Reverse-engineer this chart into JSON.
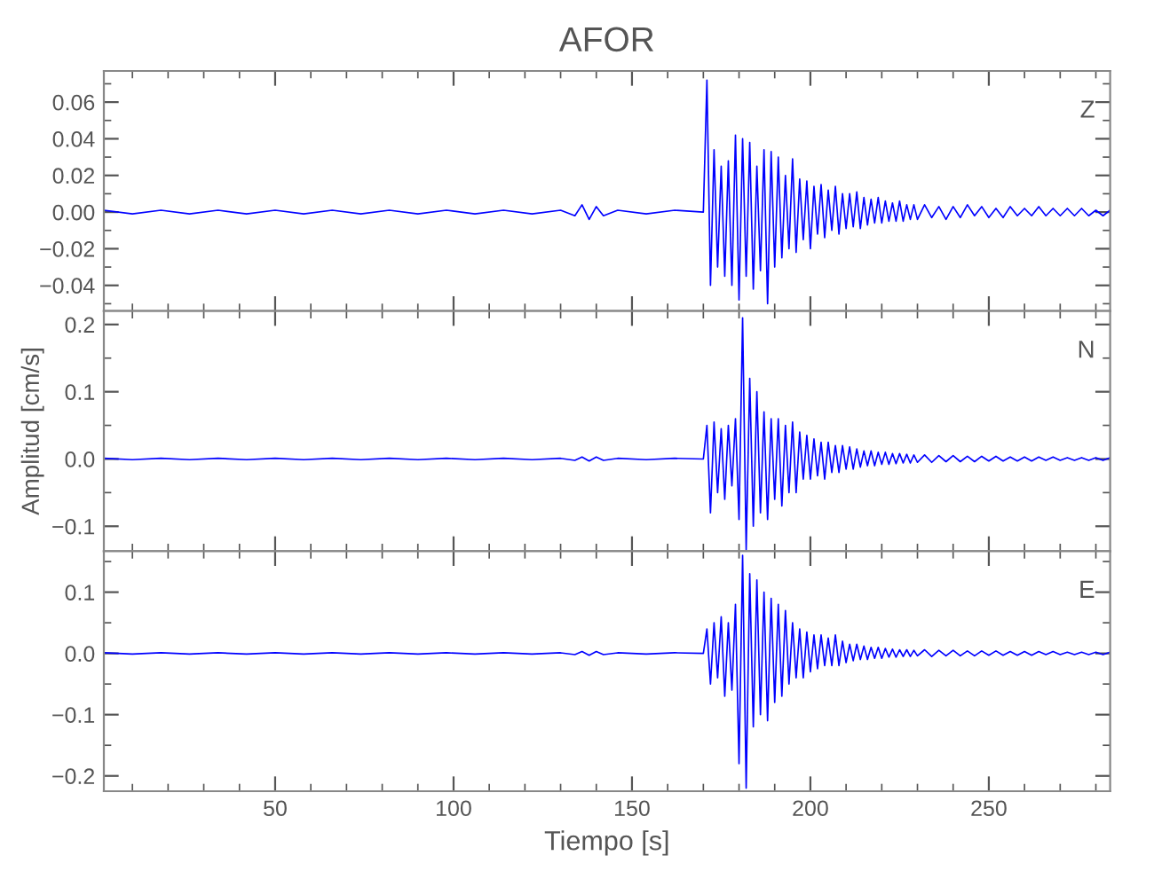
{
  "chart_data": [
    {
      "type": "line",
      "title": "AFOR",
      "annotations": [
        "Z"
      ],
      "tick_labels": "y",
      "marker": "none",
      "line_style": "solid",
      "grid": false,
      "legend": false,
      "xlim": [
        2,
        284
      ],
      "xticks": [
        50,
        100,
        150,
        200,
        250
      ],
      "ylim": [
        -0.054,
        0.077
      ],
      "yticks": [
        {
          "value": -0.04,
          "label": "−0.04"
        },
        {
          "value": -0.02,
          "label": "−0.02"
        },
        {
          "value": 0,
          "label": "0.00"
        },
        {
          "value": 0.02,
          "label": "0.02"
        },
        {
          "value": 0.04,
          "label": "0.04"
        },
        {
          "value": 0.06,
          "label": "0.06"
        }
      ],
      "x": [
        2,
        10,
        18,
        26,
        34,
        42,
        50,
        58,
        66,
        74,
        82,
        90,
        98,
        106,
        114,
        122,
        130,
        134,
        136,
        138,
        140,
        142,
        146,
        154,
        162,
        170,
        171,
        172,
        173,
        174,
        175,
        176,
        177,
        178,
        179,
        180,
        181,
        182,
        183,
        184,
        185,
        186,
        187,
        188,
        189,
        190,
        191,
        192,
        193,
        194,
        195,
        196,
        197,
        198,
        199,
        200,
        201,
        202,
        203,
        204,
        205,
        206,
        207,
        208,
        209,
        210,
        211,
        212,
        213,
        214,
        215,
        216,
        217,
        218,
        219,
        220,
        221,
        222,
        223,
        224,
        225,
        226,
        227,
        228,
        229,
        230,
        232,
        234,
        236,
        238,
        240,
        242,
        244,
        246,
        248,
        250,
        252,
        254,
        256,
        258,
        260,
        262,
        264,
        266,
        268,
        270,
        272,
        274,
        276,
        278,
        280,
        282,
        284
      ],
      "series": [
        {
          "color": "#0000ff",
          "values": [
            0.001,
            -0.001,
            0.001,
            -0.001,
            0.001,
            -0.001,
            0.001,
            -0.001,
            0.001,
            -0.001,
            0.001,
            -0.001,
            0.001,
            -0.001,
            0.001,
            -0.001,
            0.001,
            -0.002,
            0.004,
            -0.004,
            0.003,
            -0.002,
            0.001,
            -0.001,
            0.001,
            0.0,
            0.072,
            -0.04,
            0.034,
            -0.03,
            0.025,
            -0.035,
            0.028,
            -0.04,
            0.042,
            -0.048,
            0.04,
            -0.035,
            0.038,
            -0.042,
            0.025,
            -0.032,
            0.034,
            -0.05,
            0.033,
            -0.03,
            0.03,
            -0.025,
            0.02,
            -0.02,
            0.029,
            -0.022,
            0.018,
            -0.015,
            0.017,
            -0.02,
            0.014,
            -0.012,
            0.015,
            -0.014,
            0.012,
            -0.01,
            0.014,
            -0.012,
            0.01,
            -0.009,
            0.01,
            -0.008,
            0.011,
            -0.009,
            0.008,
            -0.007,
            0.007,
            -0.006,
            0.008,
            -0.006,
            0.006,
            -0.005,
            0.005,
            -0.005,
            0.006,
            -0.005,
            0.004,
            -0.004,
            0.004,
            -0.004,
            0.004,
            -0.003,
            0.003,
            -0.004,
            0.003,
            -0.003,
            0.004,
            -0.002,
            0.003,
            -0.003,
            0.002,
            -0.003,
            0.003,
            -0.002,
            0.002,
            -0.002,
            0.003,
            -0.002,
            0.002,
            -0.002,
            0.002,
            -0.002,
            0.002,
            -0.002,
            0.001,
            -0.002,
            0.001
          ]
        }
      ]
    },
    {
      "type": "line",
      "ylabel": "Amplitud [cm/s]",
      "annotations": [
        "N"
      ],
      "tick_labels": "y",
      "marker": "none",
      "line_style": "solid",
      "grid": false,
      "legend": false,
      "xlim": [
        2,
        284
      ],
      "xticks": [
        50,
        100,
        150,
        200,
        250
      ],
      "ylim": [
        -0.137,
        0.22
      ],
      "yticks": [
        {
          "value": -0.1,
          "label": "−0.1"
        },
        {
          "value": 0,
          "label": "0.0"
        },
        {
          "value": 0.1,
          "label": "0.1"
        },
        {
          "value": 0.2,
          "label": "0.2"
        }
      ],
      "x": [
        2,
        10,
        18,
        26,
        34,
        42,
        50,
        58,
        66,
        74,
        82,
        90,
        98,
        106,
        114,
        122,
        130,
        134,
        136,
        138,
        140,
        142,
        146,
        154,
        162,
        170,
        171,
        172,
        173,
        174,
        175,
        176,
        177,
        178,
        179,
        180,
        181,
        182,
        183,
        184,
        185,
        186,
        187,
        188,
        189,
        190,
        191,
        192,
        193,
        194,
        195,
        196,
        197,
        198,
        199,
        200,
        201,
        202,
        203,
        204,
        205,
        206,
        207,
        208,
        209,
        210,
        211,
        212,
        213,
        214,
        215,
        216,
        217,
        218,
        219,
        220,
        221,
        222,
        223,
        224,
        225,
        226,
        227,
        228,
        229,
        230,
        232,
        234,
        236,
        238,
        240,
        242,
        244,
        246,
        248,
        250,
        252,
        254,
        256,
        258,
        260,
        262,
        264,
        266,
        268,
        270,
        272,
        274,
        276,
        278,
        280,
        282,
        284
      ],
      "series": [
        {
          "color": "#0000ff",
          "values": [
            0.001,
            -0.001,
            0.001,
            -0.001,
            0.001,
            -0.001,
            0.001,
            -0.001,
            0.001,
            -0.001,
            0.001,
            -0.001,
            0.001,
            -0.001,
            0.001,
            -0.001,
            0.001,
            -0.002,
            0.003,
            -0.003,
            0.003,
            -0.002,
            0.001,
            -0.001,
            0.001,
            0.0,
            0.05,
            -0.08,
            0.055,
            -0.05,
            0.045,
            -0.06,
            0.05,
            -0.04,
            0.06,
            -0.09,
            0.21,
            -0.135,
            0.12,
            -0.1,
            0.1,
            -0.08,
            0.07,
            -0.09,
            0.06,
            -0.06,
            0.06,
            -0.07,
            0.05,
            -0.05,
            0.055,
            -0.05,
            0.04,
            -0.03,
            0.035,
            -0.03,
            0.03,
            -0.025,
            0.025,
            -0.03,
            0.025,
            -0.02,
            0.02,
            -0.02,
            0.02,
            -0.015,
            0.018,
            -0.015,
            0.015,
            -0.012,
            0.012,
            -0.01,
            0.012,
            -0.01,
            0.01,
            -0.008,
            0.01,
            -0.008,
            0.008,
            -0.007,
            0.008,
            -0.006,
            0.007,
            -0.006,
            0.006,
            -0.005,
            0.006,
            -0.005,
            0.005,
            -0.004,
            0.005,
            -0.004,
            0.004,
            -0.004,
            0.004,
            -0.003,
            0.004,
            -0.003,
            0.003,
            -0.003,
            0.003,
            -0.003,
            0.003,
            -0.002,
            0.003,
            -0.002,
            0.002,
            -0.002,
            0.002,
            -0.002,
            0.002,
            -0.002,
            0.002
          ]
        }
      ]
    },
    {
      "type": "line",
      "xlabel": "Tiempo [s]",
      "annotations": [
        "E"
      ],
      "marker": "none",
      "line_style": "solid",
      "grid": false,
      "legend": false,
      "xlim": [
        2,
        284
      ],
      "xticks": [
        50,
        100,
        150,
        200,
        250
      ],
      "ylim": [
        -0.225,
        0.167
      ],
      "yticks": [
        {
          "value": -0.2,
          "label": "−0.2"
        },
        {
          "value": -0.1,
          "label": "−0.1"
        },
        {
          "value": 0,
          "label": "0.0"
        },
        {
          "value": 0.1,
          "label": "0.1"
        }
      ],
      "x": [
        2,
        10,
        18,
        26,
        34,
        42,
        50,
        58,
        66,
        74,
        82,
        90,
        98,
        106,
        114,
        122,
        130,
        134,
        136,
        138,
        140,
        142,
        146,
        154,
        162,
        170,
        171,
        172,
        173,
        174,
        175,
        176,
        177,
        178,
        179,
        180,
        181,
        182,
        183,
        184,
        185,
        186,
        187,
        188,
        189,
        190,
        191,
        192,
        193,
        194,
        195,
        196,
        197,
        198,
        199,
        200,
        201,
        202,
        203,
        204,
        205,
        206,
        207,
        208,
        209,
        210,
        211,
        212,
        213,
        214,
        215,
        216,
        217,
        218,
        219,
        220,
        221,
        222,
        223,
        224,
        225,
        226,
        227,
        228,
        229,
        230,
        232,
        234,
        236,
        238,
        240,
        242,
        244,
        246,
        248,
        250,
        252,
        254,
        256,
        258,
        260,
        262,
        264,
        266,
        268,
        270,
        272,
        274,
        276,
        278,
        280,
        282,
        284
      ],
      "series": [
        {
          "color": "#0000ff",
          "values": [
            0.001,
            -0.001,
            0.001,
            -0.001,
            0.001,
            -0.001,
            0.001,
            -0.001,
            0.001,
            -0.001,
            0.001,
            -0.001,
            0.001,
            -0.001,
            0.001,
            -0.001,
            0.001,
            -0.002,
            0.003,
            -0.003,
            0.003,
            -0.002,
            0.001,
            -0.001,
            0.001,
            0.0,
            0.04,
            -0.05,
            0.05,
            -0.04,
            0.06,
            -0.07,
            0.05,
            -0.06,
            0.08,
            -0.18,
            0.16,
            -0.22,
            0.13,
            -0.12,
            0.12,
            -0.1,
            0.1,
            -0.11,
            0.09,
            -0.08,
            0.08,
            -0.07,
            0.07,
            -0.05,
            0.05,
            -0.04,
            0.04,
            -0.04,
            0.035,
            -0.03,
            0.03,
            -0.025,
            0.03,
            -0.02,
            0.025,
            -0.02,
            0.03,
            -0.02,
            0.02,
            -0.015,
            0.015,
            -0.012,
            0.015,
            -0.01,
            0.012,
            -0.01,
            0.01,
            -0.008,
            0.01,
            -0.008,
            0.008,
            -0.006,
            0.007,
            -0.006,
            0.006,
            -0.005,
            0.006,
            -0.005,
            0.005,
            -0.004,
            0.006,
            -0.005,
            0.005,
            -0.004,
            0.005,
            -0.004,
            0.004,
            -0.004,
            0.004,
            -0.003,
            0.004,
            -0.003,
            0.003,
            -0.003,
            0.003,
            -0.003,
            0.003,
            -0.002,
            0.003,
            -0.002,
            0.002,
            -0.002,
            0.002,
            -0.002,
            0.002,
            -0.002,
            0.002
          ]
        }
      ]
    }
  ]
}
